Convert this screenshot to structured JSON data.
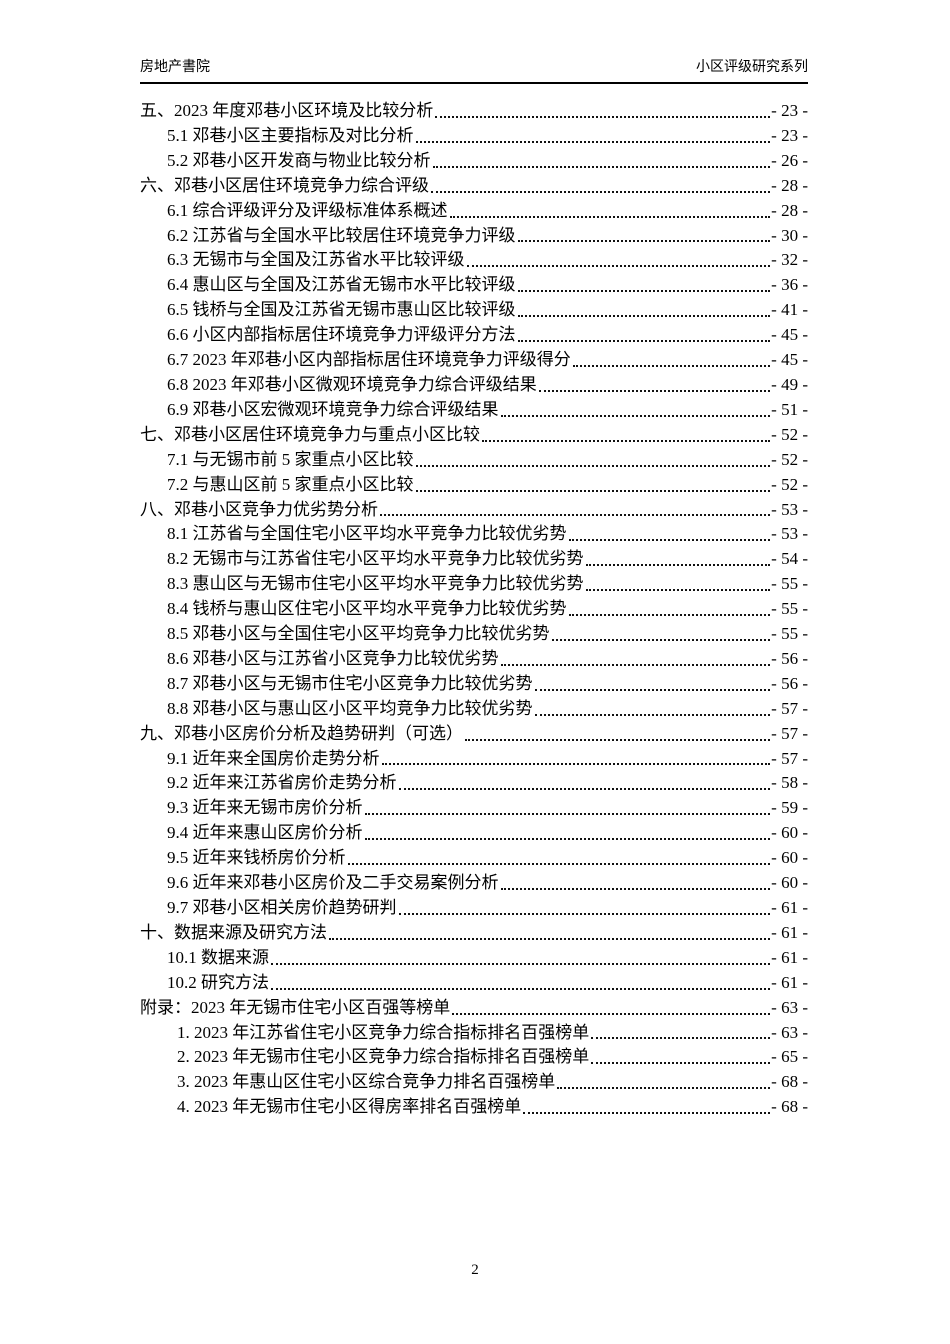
{
  "header": {
    "left": "房地产書院",
    "right": "小区评级研究系列"
  },
  "toc": [
    {
      "level": 0,
      "label": "五、2023 年度邓巷小区环境及比较分析",
      "page": "- 23 -"
    },
    {
      "level": 1,
      "label": "5.1 邓巷小区主要指标及对比分析",
      "page": "- 23 -"
    },
    {
      "level": 1,
      "label": "5.2 邓巷小区开发商与物业比较分析",
      "page": "- 26 -"
    },
    {
      "level": 0,
      "label": "六、邓巷小区居住环境竞争力综合评级",
      "page": "- 28 -"
    },
    {
      "level": 1,
      "label": "6.1 综合评级评分及评级标准体系概述",
      "page": "- 28 -"
    },
    {
      "level": 1,
      "label": "6.2 江苏省与全国水平比较居住环境竞争力评级",
      "page": "- 30 -"
    },
    {
      "level": 1,
      "label": "6.3 无锡市与全国及江苏省水平比较评级",
      "page": "- 32 -"
    },
    {
      "level": 1,
      "label": "6.4 惠山区与全国及江苏省无锡市水平比较评级",
      "page": "- 36 -"
    },
    {
      "level": 1,
      "label": "6.5 钱桥与全国及江苏省无锡市惠山区比较评级",
      "page": "- 41 -"
    },
    {
      "level": 1,
      "label": "6.6 小区内部指标居住环境竞争力评级评分方法",
      "page": "- 45 -"
    },
    {
      "level": 1,
      "label": "6.7 2023 年邓巷小区内部指标居住环境竞争力评级得分",
      "page": "- 45 -"
    },
    {
      "level": 1,
      "label": "6.8 2023 年邓巷小区微观环境竞争力综合评级结果",
      "page": "- 49 -"
    },
    {
      "level": 1,
      "label": "6.9 邓巷小区宏微观环境竞争力综合评级结果",
      "page": "- 51 -"
    },
    {
      "level": 0,
      "label": "七、邓巷小区居住环境竞争力与重点小区比较",
      "page": "- 52 -"
    },
    {
      "level": 1,
      "label": "7.1 与无锡市前 5 家重点小区比较",
      "page": "- 52 -"
    },
    {
      "level": 1,
      "label": "7.2 与惠山区前 5 家重点小区比较",
      "page": "- 52 -"
    },
    {
      "level": 0,
      "label": "八、邓巷小区竞争力优劣势分析",
      "page": "- 53 -"
    },
    {
      "level": 1,
      "label": "8.1 江苏省与全国住宅小区平均水平竞争力比较优劣势",
      "page": "- 53 -"
    },
    {
      "level": 1,
      "label": "8.2 无锡市与江苏省住宅小区平均水平竞争力比较优劣势",
      "page": "- 54 -"
    },
    {
      "level": 1,
      "label": "8.3 惠山区与无锡市住宅小区平均水平竞争力比较优劣势",
      "page": "- 55 -"
    },
    {
      "level": 1,
      "label": "8.4 钱桥与惠山区住宅小区平均水平竞争力比较优劣势",
      "page": "- 55 -"
    },
    {
      "level": 1,
      "label": "8.5 邓巷小区与全国住宅小区平均竞争力比较优劣势",
      "page": "- 55 -"
    },
    {
      "level": 1,
      "label": "8.6 邓巷小区与江苏省小区竞争力比较优劣势",
      "page": "- 56 -"
    },
    {
      "level": 1,
      "label": "8.7 邓巷小区与无锡市住宅小区竞争力比较优劣势",
      "page": "- 56 -"
    },
    {
      "level": 1,
      "label": "8.8 邓巷小区与惠山区小区平均竞争力比较优劣势",
      "page": "- 57 -"
    },
    {
      "level": 0,
      "label": "九、邓巷小区房价分析及趋势研判（可选）",
      "page": "- 57 -"
    },
    {
      "level": 1,
      "label": "9.1 近年来全国房价走势分析",
      "page": "- 57 -"
    },
    {
      "level": 1,
      "label": "9.2 近年来江苏省房价走势分析",
      "page": "- 58 -"
    },
    {
      "level": 1,
      "label": "9.3 近年来无锡市房价分析",
      "page": "- 59 -"
    },
    {
      "level": 1,
      "label": "9.4 近年来惠山区房价分析",
      "page": "- 60 -"
    },
    {
      "level": 1,
      "label": "9.5 近年来钱桥房价分析",
      "page": "- 60 -"
    },
    {
      "level": 1,
      "label": "9.6 近年来邓巷小区房价及二手交易案例分析",
      "page": "- 60 -"
    },
    {
      "level": 1,
      "label": "9.7 邓巷小区相关房价趋势研判",
      "page": "- 61 -"
    },
    {
      "level": 0,
      "label": "十、数据来源及研究方法",
      "page": "- 61 -"
    },
    {
      "level": 1,
      "label": "10.1 数据来源",
      "page": "- 61 -"
    },
    {
      "level": 1,
      "label": "10.2 研究方法",
      "page": "- 61 -"
    },
    {
      "level": 0,
      "label": "附录：2023 年无锡市住宅小区百强等榜单",
      "page": "- 63 -"
    },
    {
      "level": 2,
      "label": "1. 2023 年江苏省住宅小区竞争力综合指标排名百强榜单",
      "page": "- 63 -"
    },
    {
      "level": 2,
      "label": "2. 2023 年无锡市住宅小区竞争力综合指标排名百强榜单",
      "page": "- 65 -"
    },
    {
      "level": 2,
      "label": "3. 2023 年惠山区住宅小区综合竞争力排名百强榜单",
      "page": "- 68 -"
    },
    {
      "level": 2,
      "label": "4. 2023 年无锡市住宅小区得房率排名百强榜单",
      "page": "- 68 -"
    }
  ],
  "footer": {
    "page_number": "2"
  }
}
